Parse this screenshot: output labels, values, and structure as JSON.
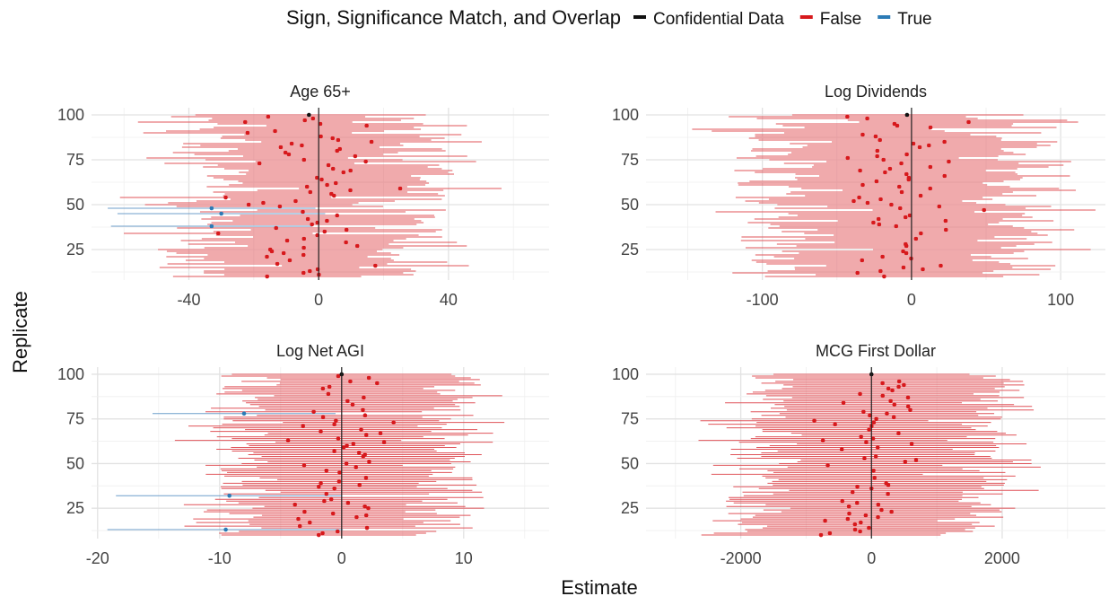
{
  "legend": {
    "title": "Sign, Significance Match, and Overlap",
    "items": [
      {
        "label": "Confidential Data",
        "color": "#111111"
      },
      {
        "label": "False",
        "color": "#d7191c"
      },
      {
        "label": "True",
        "color": "#2c7bb6"
      }
    ],
    "position": "top"
  },
  "axes": {
    "xlabel": "Estimate",
    "ylabel": "Replicate"
  },
  "chart_data": [
    {
      "type": "scatter",
      "title": "Age 65+",
      "xlim": [
        -70,
        71
      ],
      "ylim": [
        8,
        104
      ],
      "xticks": [
        -40,
        0,
        40
      ],
      "xtick_labels": [
        "-40",
        "0",
        "40"
      ],
      "yticks": [
        25,
        50,
        75,
        100
      ],
      "ytick_labels": [
        "25",
        "50",
        "75",
        "100"
      ],
      "confidential": {
        "estimate": -3,
        "ci_low": -38,
        "ci_high": 33
      },
      "true_replicates": [
        {
          "replicate": 48,
          "estimate": -33,
          "ci_low": -65,
          "ci_high": -1
        },
        {
          "replicate": 45,
          "estimate": -30,
          "ci_low": -62,
          "ci_high": 2
        },
        {
          "replicate": 38,
          "estimate": -33,
          "ci_low": -64,
          "ci_high": -2
        }
      ],
      "estimate_spread": 18,
      "half_width": 31,
      "seed": 11
    },
    {
      "type": "scatter",
      "title": "Log Dividends",
      "xlim": [
        -178,
        130
      ],
      "ylim": [
        8,
        104
      ],
      "xticks": [
        -100,
        0,
        100
      ],
      "xtick_labels": [
        "-100",
        "0",
        "100"
      ],
      "yticks": [
        25,
        50,
        75,
        100
      ],
      "ytick_labels": [
        "25",
        "50",
        "75",
        "100"
      ],
      "confidential": {
        "estimate": -3,
        "ci_low": -80,
        "ci_high": 75
      },
      "true_replicates": [],
      "estimate_spread": 42,
      "half_width": 78,
      "seed": 23
    },
    {
      "type": "scatter",
      "title": "Log Net AGI",
      "xlim": [
        -20.5,
        17
      ],
      "ylim": [
        8,
        104
      ],
      "xticks": [
        -20,
        -10,
        0,
        10
      ],
      "xtick_labels": [
        "-20",
        "-10",
        "0",
        "10"
      ],
      "yticks": [
        25,
        50,
        75,
        100
      ],
      "ytick_labels": [
        "25",
        "50",
        "75",
        "100"
      ],
      "confidential": {
        "estimate": 0,
        "ci_low": -9,
        "ci_high": 9
      },
      "true_replicates": [
        {
          "replicate": 78,
          "estimate": -8,
          "ci_low": -15.5,
          "ci_high": -0.5
        },
        {
          "replicate": 32,
          "estimate": -9.2,
          "ci_low": -18.5,
          "ci_high": 0
        },
        {
          "replicate": 13,
          "estimate": -9.5,
          "ci_low": -19.2,
          "ci_high": 0.1
        }
      ],
      "estimate_spread": 3.6,
      "half_width": 8.6,
      "seed": 37
    },
    {
      "type": "scatter",
      "title": "MCG First Dollar",
      "xlim": [
        -3450,
        3580
      ],
      "ylim": [
        8,
        104
      ],
      "xticks": [
        -2000,
        0,
        2000
      ],
      "xtick_labels": [
        "-2000",
        "0",
        "2000"
      ],
      "yticks": [
        25,
        50,
        75,
        100
      ],
      "ytick_labels": [
        "25",
        "50",
        "75",
        "100"
      ],
      "confidential": {
        "estimate": 0,
        "ci_low": -1500,
        "ci_high": 1500
      },
      "true_replicates": [],
      "estimate_spread": 650,
      "half_width": 1750,
      "seed": 53
    }
  ]
}
